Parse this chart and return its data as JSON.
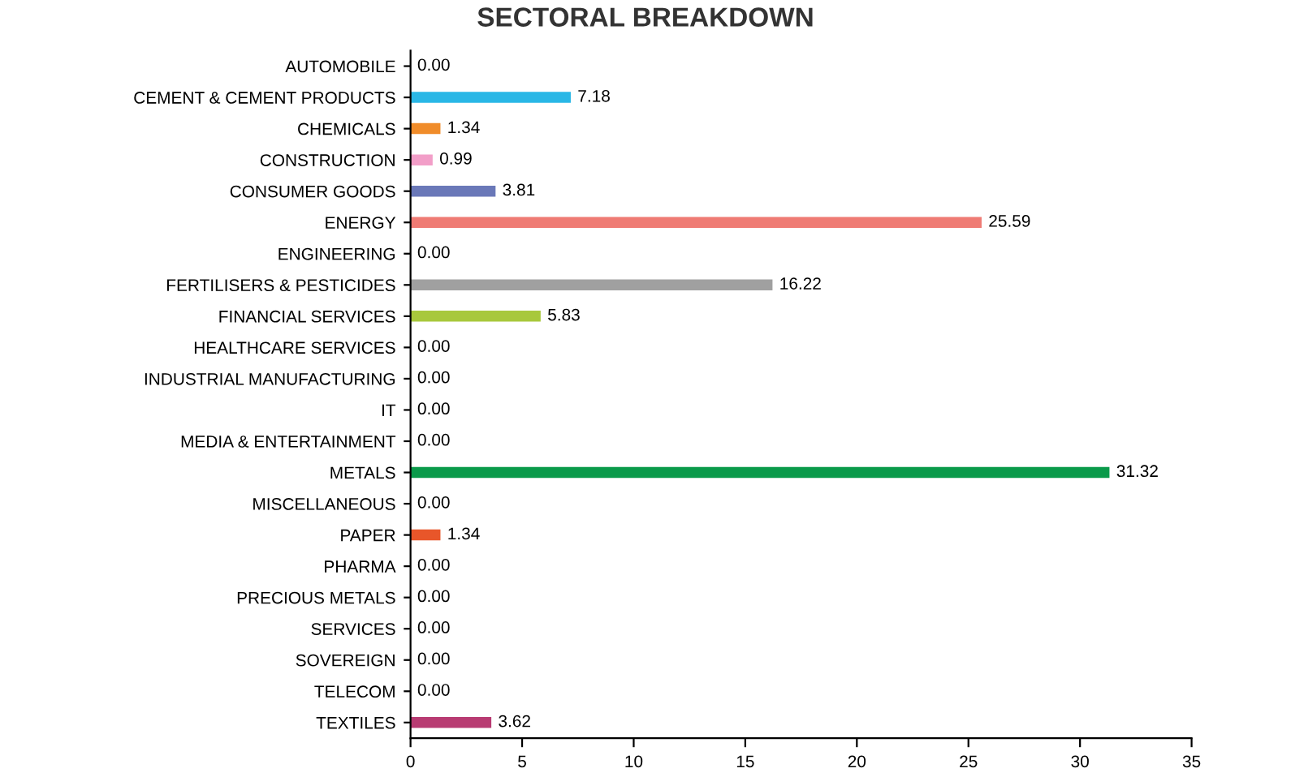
{
  "chart_data": {
    "type": "bar",
    "orientation": "horizontal",
    "title": "SECTORAL BREAKDOWN",
    "categories": [
      "AUTOMOBILE",
      "CEMENT & CEMENT PRODUCTS",
      "CHEMICALS",
      "CONSTRUCTION",
      "CONSUMER GOODS",
      "ENERGY",
      "ENGINEERING",
      "FERTILISERS & PESTICIDES",
      "FINANCIAL SERVICES",
      "HEALTHCARE SERVICES",
      "INDUSTRIAL MANUFACTURING",
      "IT",
      "MEDIA & ENTERTAINMENT",
      "METALS",
      "MISCELLANEOUS",
      "PAPER",
      "PHARMA",
      "PRECIOUS METALS",
      "SERVICES",
      "SOVEREIGN",
      "TELECOM",
      "TEXTILES"
    ],
    "values": [
      0.0,
      7.18,
      1.34,
      0.99,
      3.81,
      25.59,
      0.0,
      16.22,
      5.83,
      0.0,
      0.0,
      0.0,
      0.0,
      31.32,
      0.0,
      1.34,
      0.0,
      0.0,
      0.0,
      0.0,
      0.0,
      3.62
    ],
    "value_labels": [
      "0.00",
      "7.18",
      "1.34",
      "0.99",
      "3.81",
      "25.59",
      "0.00",
      "16.22",
      "5.83",
      "0.00",
      "0.00",
      "0.00",
      "0.00",
      "31.32",
      "0.00",
      "1.34",
      "0.00",
      "0.00",
      "0.00",
      "0.00",
      "0.00",
      "3.62"
    ],
    "colors": [
      "#4472c4",
      "#2ab7e6",
      "#f08c2a",
      "#f29ec8",
      "#6a78b8",
      "#ef7b74",
      "#4472c4",
      "#a0a0a0",
      "#a8c83c",
      "#4472c4",
      "#4472c4",
      "#4472c4",
      "#4472c4",
      "#0a9a4a",
      "#4472c4",
      "#e8562a",
      "#4472c4",
      "#4472c4",
      "#4472c4",
      "#4472c4",
      "#4472c4",
      "#b83b72"
    ],
    "xlim": [
      0,
      35
    ],
    "xticks": [
      0,
      5,
      10,
      15,
      20,
      25,
      30,
      35
    ],
    "grid": false
  }
}
